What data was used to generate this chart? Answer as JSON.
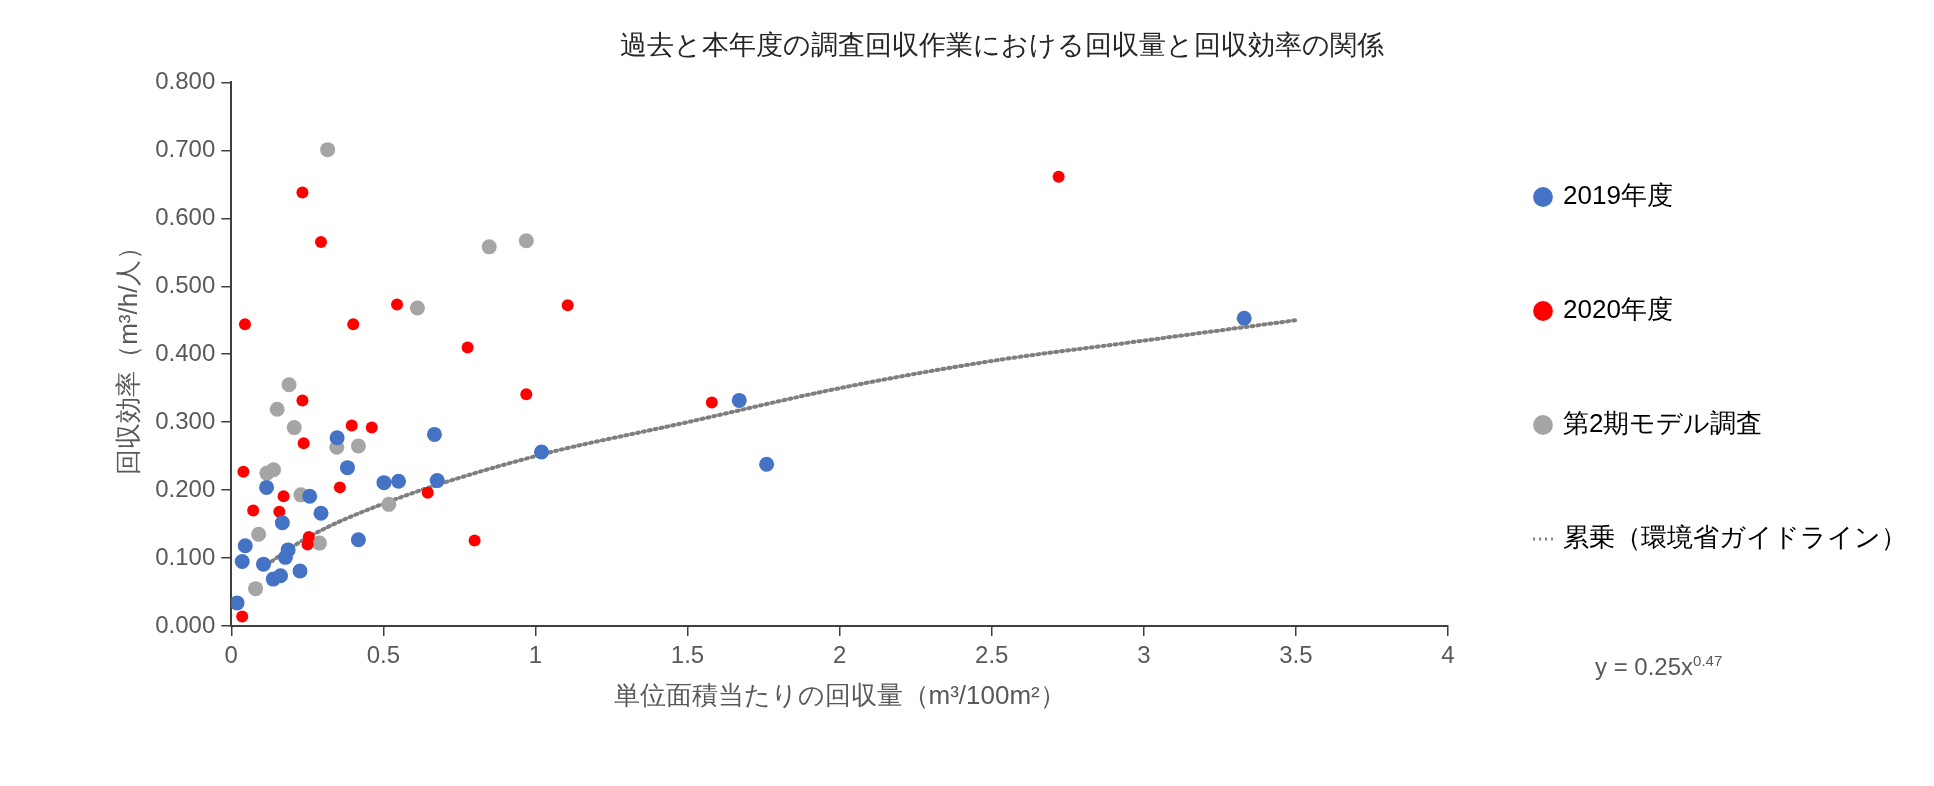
{
  "chart_data": {
    "type": "scatter",
    "title": "過去と本年度の調査回収作業における回収量と回収効率の関係",
    "xlabel": "単位面積当たりの回収量（m³/100m²）",
    "ylabel": "回収効率（m³/h/人）",
    "xlim": [
      0,
      4
    ],
    "xticks": [
      0,
      0.5,
      1,
      1.5,
      2,
      2.5,
      3,
      3.5,
      4
    ],
    "ylim": [
      0,
      0.8
    ],
    "yticks": [
      {
        "value": 0,
        "label": "0.000"
      },
      {
        "value": 0.1,
        "label": "0.100"
      },
      {
        "value": 0.2,
        "label": "0.200"
      },
      {
        "value": 0.3,
        "label": "0.300"
      },
      {
        "value": 0.4,
        "label": "0.400"
      },
      {
        "value": 0.5,
        "label": "0.500"
      },
      {
        "value": 0.6,
        "label": "0.600"
      },
      {
        "value": 0.7,
        "label": "0.700"
      },
      {
        "value": 0.8,
        "label": "0.800"
      }
    ],
    "grid": false,
    "legend": "right",
    "annotations": [
      "y = 0.25x$^{0.47}$"
    ],
    "series": [
      {
        "name": "2019年度",
        "marker": "circle",
        "color": "#4472c4",
        "x": [
          0.019,
          0.036,
          0.046,
          0.106,
          0.116,
          0.138,
          0.162,
          0.168,
          0.178,
          0.187,
          0.226,
          0.258,
          0.295,
          0.348,
          0.382,
          0.418,
          0.502,
          0.55,
          0.668,
          0.677,
          1.02,
          1.67,
          1.76,
          3.33
        ],
        "values": [
          0.034,
          0.095,
          0.118,
          0.091,
          0.204,
          0.069,
          0.074,
          0.152,
          0.101,
          0.112,
          0.081,
          0.191,
          0.166,
          0.277,
          0.233,
          0.127,
          0.211,
          0.213,
          0.282,
          0.214,
          0.256,
          0.332,
          0.238,
          0.453
        ]
      },
      {
        "name": "2020年度",
        "marker": "circle",
        "color": "#ff0000",
        "x": [
          0.036,
          0.045,
          0.04,
          0.072,
          0.158,
          0.172,
          0.234,
          0.234,
          0.238,
          0.255,
          0.251,
          0.295,
          0.357,
          0.401,
          0.396,
          0.462,
          0.545,
          0.646,
          0.777,
          0.8,
          0.97,
          1.106,
          1.58,
          2.72
        ],
        "values": [
          0.014,
          0.444,
          0.227,
          0.17,
          0.168,
          0.191,
          0.638,
          0.332,
          0.269,
          0.131,
          0.12,
          0.565,
          0.204,
          0.444,
          0.295,
          0.292,
          0.473,
          0.196,
          0.41,
          0.126,
          0.341,
          0.472,
          0.329,
          0.661
        ]
      },
      {
        "name": "第2期モデル調査",
        "marker": "circle",
        "color": "#a5a5a5",
        "x": [
          0.317,
          0.848,
          0.97,
          0.612,
          0.19,
          0.151,
          0.207,
          0.347,
          0.418,
          0.117,
          0.139,
          0.229,
          0.518,
          0.09,
          0.29,
          0.08
        ],
        "values": [
          0.701,
          0.558,
          0.567,
          0.468,
          0.355,
          0.319,
          0.292,
          0.263,
          0.265,
          0.225,
          0.23,
          0.193,
          0.179,
          0.135,
          0.122,
          0.055
        ]
      },
      {
        "name": "累乗（環境省ガイドライン）",
        "type": "line",
        "marker": "none",
        "line_style": "dotted",
        "color": "#7f7f7f",
        "x": [
          0.1,
          0.25,
          0.5,
          1,
          1.5,
          2,
          2.5,
          3,
          3.5
        ],
        "values": [
          0.085,
          0.13,
          0.18,
          0.25,
          0.3,
          0.35,
          0.39,
          0.42,
          0.45
        ]
      }
    ]
  }
}
